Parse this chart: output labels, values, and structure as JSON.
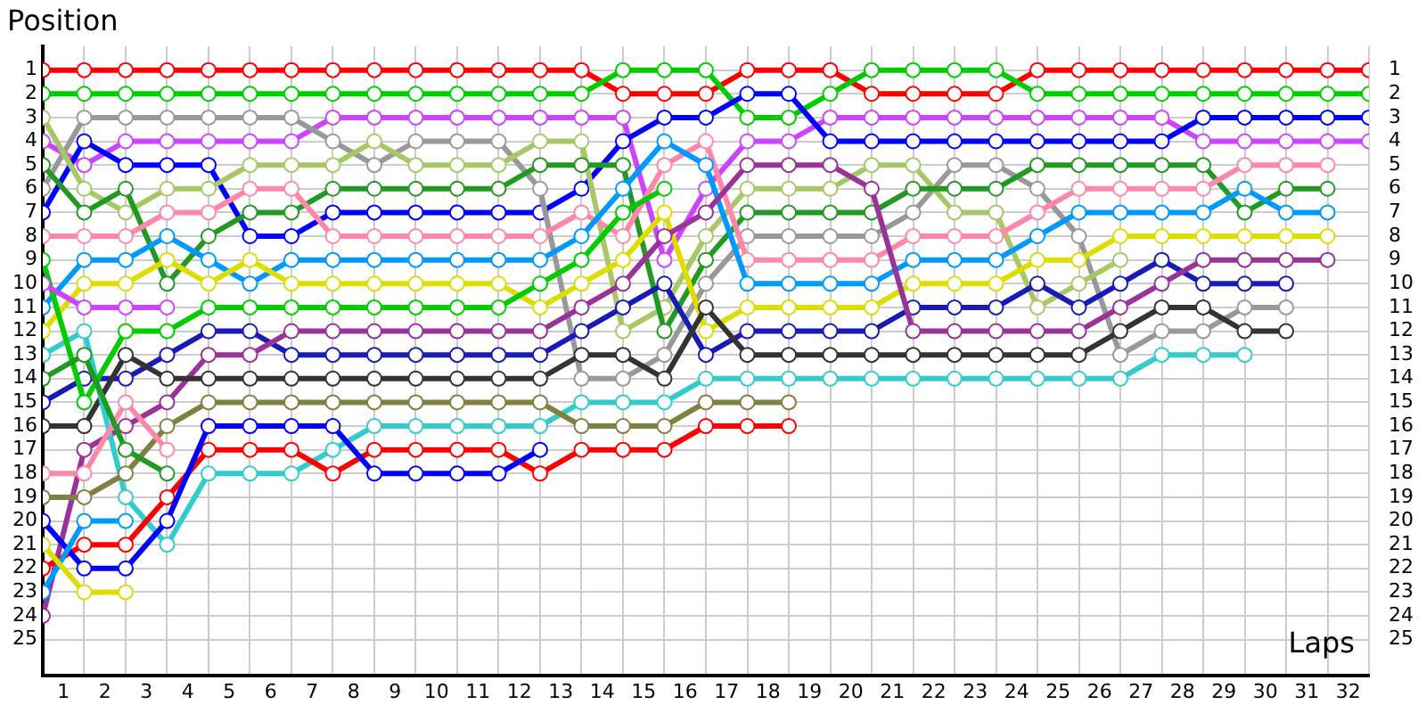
{
  "chart_data": {
    "type": "line",
    "xlabel": "Laps",
    "ylabel": "Position",
    "x": [
      0,
      1,
      2,
      3,
      4,
      5,
      6,
      7,
      8,
      9,
      10,
      11,
      12,
      13,
      14,
      15,
      16,
      17,
      18,
      19,
      20,
      21,
      22,
      23,
      24,
      25,
      26,
      27,
      28,
      29,
      30,
      31,
      32
    ],
    "xlim": [
      0,
      32
    ],
    "xticks": [
      {
        "value": 0.5,
        "label": "1"
      },
      {
        "value": 1.5,
        "label": "2"
      },
      {
        "value": 2.5,
        "label": "3"
      },
      {
        "value": 3.5,
        "label": "4"
      },
      {
        "value": 4.5,
        "label": "5"
      },
      {
        "value": 5.5,
        "label": "6"
      },
      {
        "value": 6.5,
        "label": "7"
      },
      {
        "value": 7.5,
        "label": "8"
      },
      {
        "value": 8.5,
        "label": "9"
      },
      {
        "value": 9.5,
        "label": "10"
      },
      {
        "value": 10.5,
        "label": "11"
      },
      {
        "value": 11.5,
        "label": "12"
      },
      {
        "value": 12.5,
        "label": "13"
      },
      {
        "value": 13.5,
        "label": "14"
      },
      {
        "value": 14.5,
        "label": "15"
      },
      {
        "value": 15.5,
        "label": "16"
      },
      {
        "value": 16.5,
        "label": "17"
      },
      {
        "value": 17.5,
        "label": "18"
      },
      {
        "value": 18.5,
        "label": "19"
      },
      {
        "value": 19.5,
        "label": "20"
      },
      {
        "value": 20.5,
        "label": "21"
      },
      {
        "value": 21.5,
        "label": "22"
      },
      {
        "value": 22.5,
        "label": "23"
      },
      {
        "value": 23.5,
        "label": "24"
      },
      {
        "value": 24.5,
        "label": "25"
      },
      {
        "value": 25.5,
        "label": "26"
      },
      {
        "value": 26.5,
        "label": "27"
      },
      {
        "value": 27.5,
        "label": "28"
      },
      {
        "value": 28.5,
        "label": "29"
      },
      {
        "value": 29.5,
        "label": "30"
      },
      {
        "value": 30.5,
        "label": "31"
      },
      {
        "value": 31.5,
        "label": "32"
      }
    ],
    "ylim": [
      26.5,
      0
    ],
    "yticks": [
      1,
      2,
      3,
      4,
      5,
      6,
      7,
      8,
      9,
      10,
      11,
      12,
      13,
      14,
      15,
      16,
      17,
      18,
      19,
      20,
      21,
      22,
      23,
      24,
      25
    ],
    "y2lim": [
      26.5,
      0
    ],
    "y2ticks": [
      1,
      2,
      3,
      4,
      5,
      6,
      7,
      8,
      9,
      10,
      11,
      12,
      13,
      14,
      15,
      16,
      17,
      18,
      19,
      20,
      21,
      22,
      23,
      24,
      25
    ],
    "grid": true,
    "marker": "circle",
    "line_style": "solid",
    "series": [
      {
        "color": "#ff0000",
        "values": [
          1,
          1,
          1,
          1,
          1,
          1,
          1,
          1,
          1,
          1,
          1,
          1,
          1,
          1,
          2,
          2,
          2,
          1,
          1,
          1,
          2,
          2,
          2,
          2,
          1,
          1,
          1,
          1,
          1,
          1,
          1,
          1,
          1
        ]
      },
      {
        "color": "#00cc00",
        "values": [
          2,
          2,
          2,
          2,
          2,
          2,
          2,
          2,
          2,
          2,
          2,
          2,
          2,
          2,
          1,
          1,
          1,
          3,
          3,
          2,
          1,
          1,
          1,
          1,
          2,
          2,
          2,
          2,
          2,
          2,
          2,
          2,
          2
        ]
      },
      {
        "color": "#cc44ff",
        "values": [
          4,
          5,
          4,
          4,
          4,
          4,
          4,
          3,
          3,
          3,
          3,
          3,
          3,
          3,
          3,
          9,
          6,
          4,
          4,
          3,
          3,
          3,
          3,
          3,
          3,
          3,
          3,
          3,
          4,
          4,
          4,
          4,
          4
        ]
      },
      {
        "color": "#0000ff",
        "values": [
          7,
          4,
          5,
          5,
          5,
          8,
          8,
          7,
          7,
          7,
          7,
          7,
          7,
          6,
          4,
          3,
          3,
          2,
          2,
          4,
          4,
          4,
          4,
          4,
          4,
          4,
          4,
          4,
          3,
          3,
          3,
          3,
          3
        ]
      },
      {
        "color": "#999999",
        "values": [
          6,
          3,
          3,
          3,
          3,
          3,
          3,
          4,
          5,
          4,
          4,
          4,
          6,
          14,
          14,
          13,
          10,
          8,
          8,
          8,
          8,
          7,
          5,
          5,
          6,
          8,
          13,
          12,
          12,
          11,
          11,
          null,
          null
        ]
      },
      {
        "color": "#a8c868",
        "values": [
          3,
          6,
          7,
          6,
          6,
          5,
          5,
          5,
          4,
          5,
          5,
          5,
          4,
          4,
          12,
          11,
          8,
          6,
          6,
          6,
          5,
          5,
          7,
          7,
          11,
          10,
          9,
          null,
          null,
          null,
          null,
          null,
          null
        ]
      },
      {
        "color": "#229922",
        "values": [
          5,
          7,
          6,
          10,
          8,
          7,
          7,
          6,
          6,
          6,
          6,
          6,
          5,
          5,
          5,
          12,
          9,
          7,
          7,
          7,
          7,
          6,
          6,
          6,
          5,
          5,
          5,
          5,
          5,
          7,
          6,
          6,
          null
        ]
      },
      {
        "color": "#ff88aa",
        "values": [
          8,
          8,
          8,
          7,
          7,
          6,
          6,
          8,
          8,
          8,
          8,
          8,
          8,
          7,
          8,
          5,
          4,
          9,
          9,
          9,
          9,
          8,
          8,
          8,
          7,
          6,
          6,
          6,
          6,
          5,
          5,
          5,
          null
        ]
      },
      {
        "color": "#0099ff",
        "values": [
          11,
          9,
          9,
          8,
          9,
          10,
          9,
          9,
          9,
          9,
          9,
          9,
          9,
          8,
          6,
          4,
          5,
          10,
          10,
          10,
          10,
          9,
          9,
          9,
          8,
          7,
          7,
          7,
          7,
          6,
          7,
          7,
          null
        ]
      },
      {
        "color": "#dddd00",
        "values": [
          12,
          10,
          10,
          9,
          10,
          9,
          10,
          10,
          10,
          10,
          10,
          10,
          11,
          10,
          9,
          7,
          12,
          11,
          11,
          11,
          11,
          10,
          10,
          10,
          9,
          9,
          8,
          8,
          8,
          8,
          8,
          8,
          null
        ]
      },
      {
        "color": "#1a1ab8",
        "values": [
          15,
          14,
          14,
          13,
          12,
          12,
          13,
          13,
          13,
          13,
          13,
          13,
          13,
          12,
          11,
          10,
          13,
          12,
          12,
          12,
          12,
          11,
          11,
          11,
          10,
          11,
          10,
          9,
          10,
          10,
          10,
          null,
          null
        ]
      },
      {
        "color": "#993399",
        "values": [
          24,
          17,
          16,
          15,
          13,
          13,
          12,
          12,
          12,
          12,
          12,
          12,
          12,
          11,
          10,
          8,
          7,
          5,
          5,
          5,
          6,
          12,
          12,
          12,
          12,
          12,
          11,
          10,
          9,
          9,
          9,
          9,
          null
        ]
      },
      {
        "color": "#333333",
        "values": [
          16,
          16,
          13,
          14,
          14,
          14,
          14,
          14,
          14,
          14,
          14,
          14,
          14,
          13,
          13,
          14,
          11,
          13,
          13,
          13,
          13,
          13,
          13,
          13,
          13,
          13,
          12,
          11,
          11,
          12,
          12,
          null,
          null
        ]
      },
      {
        "color": "#33cccc",
        "values": [
          13,
          12,
          19,
          21,
          18,
          18,
          18,
          17,
          16,
          16,
          16,
          16,
          16,
          15,
          15,
          15,
          14,
          14,
          14,
          14,
          14,
          14,
          14,
          14,
          14,
          14,
          14,
          13,
          13,
          13,
          null,
          null,
          null
        ]
      },
      {
        "color": "#808040",
        "values": [
          19,
          19,
          18,
          16,
          15,
          15,
          15,
          15,
          15,
          15,
          15,
          15,
          15,
          16,
          16,
          16,
          15,
          15,
          15,
          null,
          null,
          null,
          null,
          null,
          null,
          null,
          null,
          null,
          null,
          null,
          null,
          null,
          null
        ]
      },
      {
        "color": "#ff0000",
        "values": [
          22,
          21,
          21,
          19,
          17,
          17,
          17,
          18,
          17,
          17,
          17,
          17,
          18,
          17,
          17,
          17,
          16,
          16,
          16,
          null,
          null,
          null,
          null,
          null,
          null,
          null,
          null,
          null,
          null,
          null,
          null,
          null,
          null
        ]
      },
      {
        "color": "#0000ff",
        "values": [
          20,
          22,
          22,
          20,
          16,
          16,
          16,
          16,
          18,
          18,
          18,
          18,
          17,
          null,
          null,
          null,
          null,
          null,
          null,
          null,
          null,
          null,
          null,
          null,
          null,
          null,
          null,
          null,
          null,
          null,
          null,
          null,
          null
        ]
      },
      {
        "color": "#ff88aa",
        "values": [
          18,
          18,
          15,
          17,
          null,
          null,
          null,
          null,
          null,
          null,
          null,
          null,
          null,
          null,
          null,
          null,
          null,
          null,
          null,
          null,
          null,
          null,
          null,
          null,
          null,
          null,
          null,
          null,
          null,
          null,
          null,
          null,
          null
        ]
      },
      {
        "color": "#0099ff",
        "values": [
          23,
          20,
          20,
          null,
          null,
          null,
          null,
          null,
          null,
          null,
          null,
          null,
          null,
          null,
          null,
          null,
          null,
          null,
          null,
          null,
          null,
          null,
          null,
          null,
          null,
          null,
          null,
          null,
          null,
          null,
          null,
          null,
          null
        ]
      },
      {
        "color": "#dddd00",
        "values": [
          21,
          23,
          23,
          null,
          null,
          null,
          null,
          null,
          null,
          null,
          null,
          null,
          null,
          null,
          null,
          null,
          null,
          null,
          null,
          null,
          null,
          null,
          null,
          null,
          null,
          null,
          null,
          null,
          null,
          null,
          null,
          null,
          null
        ]
      },
      {
        "color": "#00cc00",
        "values": [
          9,
          15,
          12,
          12,
          11,
          11,
          11,
          11,
          11,
          11,
          11,
          11,
          10,
          9,
          7,
          6,
          null,
          null,
          null,
          null,
          null,
          null,
          null,
          null,
          null,
          null,
          null,
          null,
          null,
          null,
          null,
          null,
          null
        ]
      },
      {
        "color": "#229922",
        "values": [
          14,
          13,
          17,
          18,
          null,
          null,
          null,
          null,
          null,
          null,
          null,
          null,
          null,
          null,
          null,
          null,
          null,
          null,
          null,
          null,
          null,
          null,
          null,
          null,
          null,
          null,
          null,
          null,
          null,
          null,
          null,
          null,
          null
        ]
      },
      {
        "color": "#cc44ff",
        "values": [
          10,
          11,
          11,
          11,
          null,
          null,
          null,
          null,
          null,
          null,
          null,
          null,
          null,
          null,
          null,
          null,
          null,
          null,
          null,
          null,
          null,
          null,
          null,
          null,
          null,
          null,
          null,
          null,
          null,
          null,
          null,
          null,
          null
        ]
      }
    ]
  }
}
